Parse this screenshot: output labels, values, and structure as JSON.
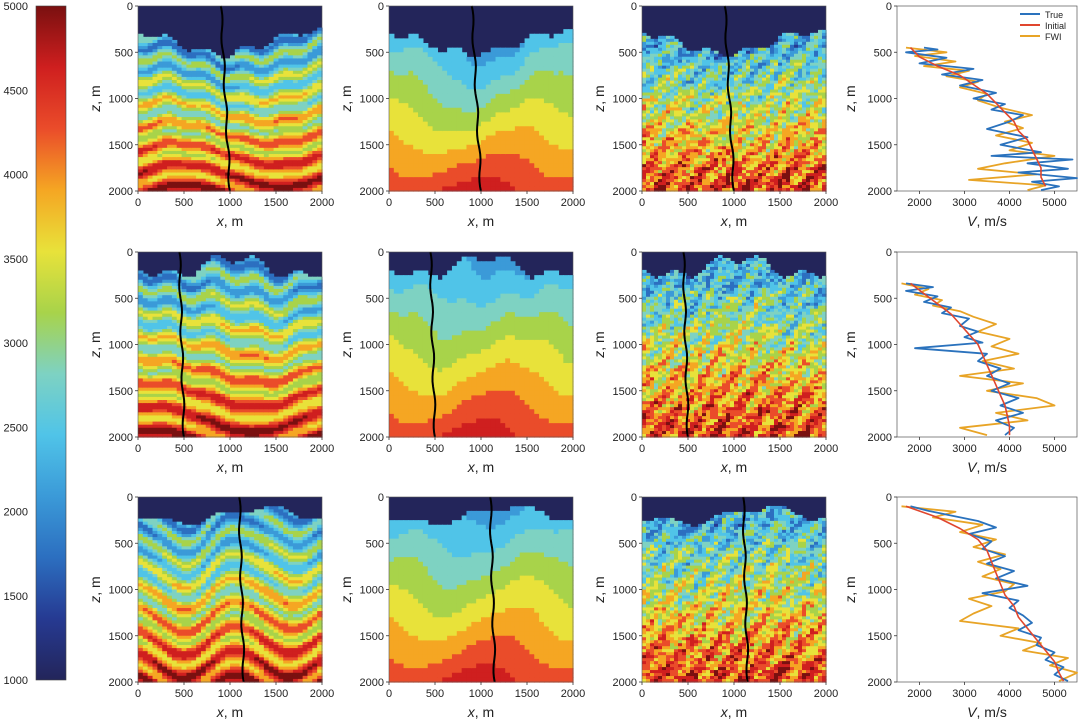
{
  "colors": {
    "colormap": [
      "#23255a",
      "#263a92",
      "#2c6fc0",
      "#3b9ad8",
      "#50c4e8",
      "#7ed2c2",
      "#a8d34a",
      "#e8e23a",
      "#f5a623",
      "#ea4c2a",
      "#cf1f1f",
      "#7a1010"
    ],
    "water": "#23255a",
    "true_line": "#2a72bd",
    "initial_line": "#e0462e",
    "fwi_line": "#e8a426",
    "well_line": "#000000"
  },
  "colorbar": {
    "ticks": [
      "5000",
      "4500",
      "4000",
      "3500",
      "3000",
      "2500",
      "2000",
      "1500",
      "1000"
    ],
    "range": [
      1000,
      5000
    ]
  },
  "axes": {
    "x_label": "x",
    "x_unit": ", m",
    "z_label": "z",
    "z_unit": ", m",
    "v_label": "V",
    "v_unit": ", m/s",
    "x_ticks": [
      "0",
      "500",
      "1000",
      "1500",
      "2000"
    ],
    "z_ticks": [
      "0",
      "500",
      "1000",
      "1500",
      "2000"
    ],
    "v_ticks_row1": [
      "2000",
      "3000",
      "4000",
      "5000"
    ],
    "v_ticks_row2": [
      "2000",
      "3000",
      "4000",
      "5000"
    ],
    "v_ticks_row3": [
      "2000",
      "3000",
      "4000",
      "5000"
    ]
  },
  "legend": {
    "items": [
      "True",
      "Initial",
      "FWI"
    ],
    "placement": "top-right"
  },
  "chart_data": [
    {
      "type": "line",
      "panel": "row1-profiles",
      "xlabel": "V, m/s",
      "ylabel": "z, m",
      "xlim": [
        1500,
        5500
      ],
      "ylim": [
        2000,
        0
      ],
      "legend": [
        "True",
        "Initial",
        "FWI"
      ],
      "series": [
        {
          "name": "True",
          "z": [
            450,
            470,
            500,
            560,
            620,
            680,
            740,
            800,
            860,
            940,
            1000,
            1060,
            1120,
            1180,
            1250,
            1330,
            1420,
            1500,
            1580,
            1620,
            1660,
            1700,
            1760,
            1800,
            1860,
            1900,
            1950,
            1990
          ],
          "v": [
            2100,
            2400,
            1700,
            2600,
            2000,
            3200,
            2500,
            3400,
            2900,
            3700,
            3200,
            3900,
            3600,
            4300,
            4000,
            3500,
            4400,
            3800,
            4700,
            3600,
            5400,
            4400,
            5300,
            4200,
            5500,
            4500,
            5100,
            4700
          ]
        },
        {
          "name": "Initial",
          "z": [
            450,
            550,
            650,
            750,
            850,
            950,
            1050,
            1150,
            1250,
            1350,
            1450,
            1550,
            1650,
            1750,
            1850,
            1950
          ],
          "v": [
            1800,
            2000,
            2400,
            2900,
            3200,
            3500,
            3700,
            3900,
            4100,
            4200,
            4400,
            4500,
            4600,
            4700,
            4700,
            4800
          ]
        },
        {
          "name": "FWI",
          "z": [
            450,
            500,
            540,
            600,
            650,
            700,
            760,
            820,
            880,
            950,
            1020,
            1100,
            1180,
            1250,
            1320,
            1400,
            1480,
            1560,
            1620,
            1700,
            1760,
            1820,
            1880,
            1940,
            1990
          ],
          "v": [
            1700,
            2600,
            1900,
            2800,
            2100,
            3100,
            2600,
            3300,
            2900,
            3500,
            3300,
            3800,
            4500,
            3900,
            4300,
            3700,
            4500,
            4000,
            5000,
            3900,
            3300,
            4600,
            3100,
            4800,
            4400
          ]
        }
      ]
    },
    {
      "type": "line",
      "panel": "row2-profiles",
      "xlabel": "V, m/s",
      "ylabel": "z, m",
      "xlim": [
        1500,
        5500
      ],
      "ylim": [
        2000,
        0
      ],
      "series": [
        {
          "name": "True",
          "z": [
            340,
            380,
            420,
            480,
            540,
            600,
            660,
            720,
            800,
            860,
            920,
            980,
            1040,
            1100,
            1180,
            1260,
            1340,
            1420,
            1500,
            1580,
            1660,
            1740,
            1820,
            1900,
            1980
          ],
          "v": [
            1700,
            2300,
            1700,
            2400,
            2100,
            2700,
            2500,
            3100,
            2900,
            3300,
            3000,
            3400,
            1900,
            3500,
            3300,
            3800,
            3500,
            4000,
            3600,
            4200,
            3800,
            4300,
            3700,
            4100,
            3900
          ]
        },
        {
          "name": "Initial",
          "z": [
            340,
            450,
            560,
            670,
            780,
            890,
            1000,
            1110,
            1220,
            1330,
            1440,
            1550,
            1660,
            1770,
            1880,
            1980
          ],
          "v": [
            1800,
            2100,
            2400,
            2700,
            2900,
            3100,
            3300,
            3400,
            3500,
            3600,
            3700,
            3800,
            3900,
            3950,
            4000,
            4000
          ]
        },
        {
          "name": "FWI",
          "z": [
            340,
            400,
            460,
            520,
            580,
            640,
            700,
            780,
            860,
            940,
            1020,
            1100,
            1180,
            1260,
            1340,
            1420,
            1500,
            1580,
            1660,
            1740,
            1820,
            1900,
            1980
          ],
          "v": [
            1600,
            2200,
            1900,
            2500,
            2300,
            2900,
            3200,
            3700,
            3300,
            4000,
            3600,
            4200,
            3400,
            4100,
            2900,
            4300,
            3500,
            4600,
            5000,
            3700,
            4400,
            2900,
            3500
          ]
        }
      ]
    },
    {
      "type": "line",
      "panel": "row3-profiles",
      "xlabel": "V, m/s",
      "ylabel": "z, m",
      "xlim": [
        1500,
        5500
      ],
      "ylim": [
        2000,
        0
      ],
      "series": [
        {
          "name": "True",
          "z": [
            100,
            150,
            200,
            260,
            330,
            400,
            480,
            560,
            640,
            720,
            800,
            880,
            960,
            1040,
            1120,
            1200,
            1280,
            1360,
            1440,
            1520,
            1600,
            1680,
            1760,
            1840,
            1920,
            1990
          ],
          "v": [
            1800,
            2200,
            2700,
            3300,
            3700,
            3100,
            3600,
            3400,
            3900,
            3500,
            4100,
            3700,
            4400,
            3400,
            4200,
            4000,
            4300,
            4500,
            4200,
            4700,
            4600,
            5000,
            4800,
            5200,
            5000,
            5300
          ]
        },
        {
          "name": "Initial",
          "z": [
            100,
            220,
            340,
            460,
            580,
            700,
            820,
            940,
            1060,
            1180,
            1300,
            1420,
            1540,
            1660,
            1780,
            1900,
            1990
          ],
          "v": [
            1700,
            2400,
            2900,
            3300,
            3500,
            3600,
            3700,
            3800,
            3900,
            4100,
            4200,
            4400,
            4600,
            4800,
            5000,
            5100,
            5200
          ]
        },
        {
          "name": "FWI",
          "z": [
            100,
            160,
            220,
            300,
            380,
            460,
            540,
            620,
            700,
            780,
            860,
            940,
            1020,
            1100,
            1180,
            1260,
            1340,
            1420,
            1500,
            1580,
            1660,
            1740,
            1820,
            1900,
            1990
          ],
          "v": [
            1600,
            2800,
            2300,
            3400,
            2900,
            3700,
            3200,
            3900,
            3300,
            3800,
            3400,
            4100,
            3900,
            3100,
            3600,
            3200,
            2900,
            4200,
            3800,
            4700,
            4300,
            5300,
            4900,
            5500,
            5100
          ]
        }
      ]
    }
  ]
}
